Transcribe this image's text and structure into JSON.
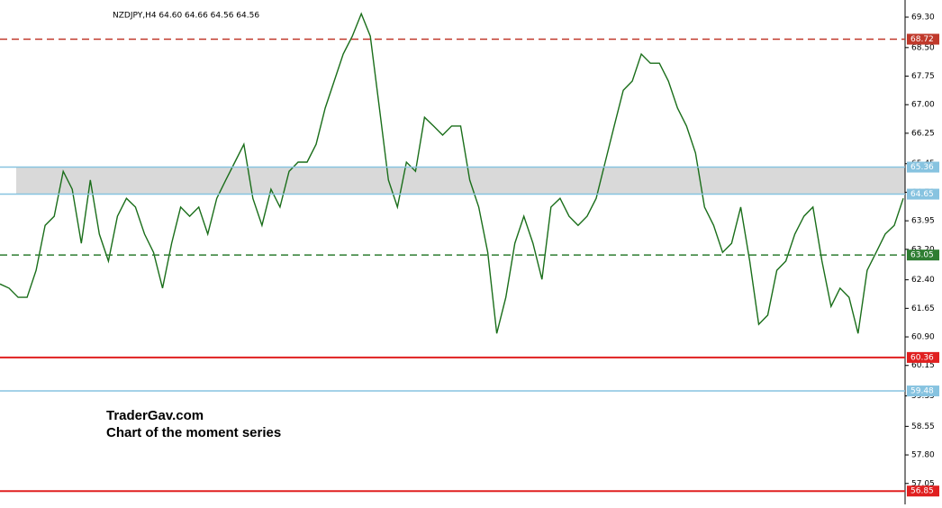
{
  "chart_data": {
    "type": "line",
    "header": "NZDJPY,H4  64.60 64.66 64.56 64.56",
    "annotations": [
      "TraderGav.com",
      "Chart of the moment series"
    ],
    "series": [
      {
        "name": "NZDJPY",
        "color": "#1a6e1a",
        "values": [
          62.29,
          62.18,
          61.94,
          61.94,
          62.65,
          63.83,
          64.07,
          65.25,
          64.78,
          63.36,
          65.02,
          63.6,
          62.89,
          64.07,
          64.54,
          64.31,
          63.6,
          63.12,
          62.18,
          63.36,
          64.31,
          64.07,
          64.31,
          63.6,
          64.54,
          65.02,
          65.49,
          65.96,
          64.54,
          63.83,
          64.78,
          64.31,
          65.25,
          65.49,
          65.49,
          65.96,
          66.91,
          67.62,
          68.33,
          68.8,
          69.39,
          68.8,
          66.91,
          65.02,
          64.31,
          65.49,
          65.25,
          66.67,
          66.44,
          66.2,
          66.44,
          66.44,
          65.02,
          64.31,
          63.12,
          60.99,
          61.94,
          63.36,
          64.07,
          63.36,
          62.41,
          64.31,
          64.54,
          64.07,
          63.83,
          64.07,
          64.54,
          65.49,
          66.44,
          67.38,
          67.62,
          68.33,
          68.09,
          68.09,
          67.62,
          66.91,
          66.44,
          65.73,
          64.31,
          63.83,
          63.12,
          63.36,
          64.31,
          62.89,
          61.23,
          61.47,
          62.65,
          62.89,
          63.6,
          64.07,
          64.31,
          62.89,
          61.7,
          62.18,
          61.94,
          60.99,
          62.65,
          63.12,
          63.6,
          63.83,
          64.54
        ]
      }
    ],
    "levels": [
      {
        "value": 68.72,
        "color": "#c0392b",
        "style": "dashed"
      },
      {
        "value": 65.36,
        "color": "#87c3e0",
        "style": "solid"
      },
      {
        "value": 64.65,
        "color": "#87c3e0",
        "style": "solid"
      },
      {
        "value": 63.05,
        "color": "#2e7d32",
        "style": "dashed"
      },
      {
        "value": 60.36,
        "color": "#e02020",
        "style": "solid"
      },
      {
        "value": 59.48,
        "color": "#87c3e0",
        "style": "solid"
      },
      {
        "value": 56.85,
        "color": "#e02020",
        "style": "solid"
      }
    ],
    "zone_color": "#d9d9d9",
    "ylim": [
      56.5,
      69.75
    ],
    "yticks": [
      {
        "value": 69.3,
        "label": "69.30"
      },
      {
        "value": 68.5,
        "label": "68.50"
      },
      67.75,
      {
        "value": 67.0,
        "label": "67.00"
      },
      66.25,
      65.45,
      {
        "value": 64.7,
        "label": "64.70"
      },
      63.95,
      {
        "value": 63.2,
        "label": "63.20"
      },
      {
        "value": 62.4,
        "label": "62.40"
      },
      61.65,
      {
        "value": 60.9,
        "label": "60.90"
      },
      60.15,
      59.35,
      58.55,
      {
        "value": 57.8,
        "label": "57.80"
      },
      57.05
    ]
  }
}
